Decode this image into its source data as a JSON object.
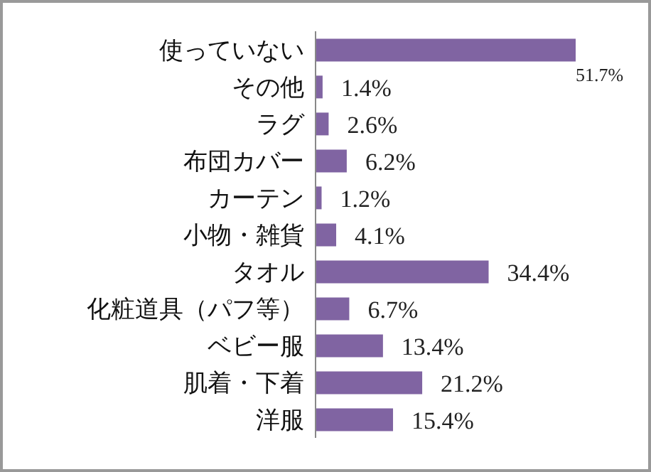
{
  "chart_data": {
    "type": "bar",
    "orientation": "horizontal",
    "categories": [
      "使っていない",
      "その他",
      "ラグ",
      "布団カバー",
      "カーテン",
      "小物・雑貨",
      "タオル",
      "化粧道具（パフ等）",
      "ベビー服",
      "肌着・下着",
      "洋服"
    ],
    "values": [
      51.7,
      1.4,
      2.6,
      6.2,
      1.2,
      4.1,
      34.4,
      6.7,
      13.4,
      21.2,
      15.4
    ],
    "value_labels": [
      "51.7%",
      "1.4%",
      "2.6%",
      "6.2%",
      "1.2%",
      "4.1%",
      "34.4%",
      "6.7%",
      "13.4%",
      "21.2%",
      "15.4%"
    ],
    "color": "#8064a2",
    "grid": false,
    "legend": false
  }
}
